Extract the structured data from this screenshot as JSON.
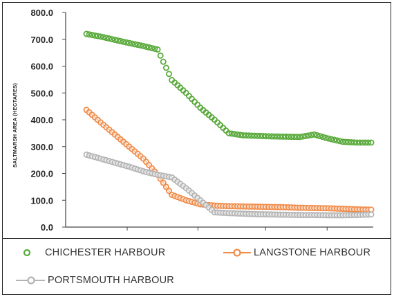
{
  "chart_data": {
    "type": "line",
    "ylabel": "SALTMARSH AREA (HECTARES)",
    "ylim": [
      0,
      800
    ],
    "yticks": [
      "800.0",
      "700.0",
      "600.0",
      "500.0",
      "400.0",
      "300.0",
      "200.0",
      "100.0",
      "0.0"
    ],
    "x": [
      0,
      2,
      4,
      6,
      8,
      10,
      12,
      14,
      16,
      18,
      20,
      22,
      24,
      26,
      28,
      30,
      32,
      34,
      36,
      38,
      40
    ],
    "series": [
      {
        "name": "CHICHESTER HARBOUR",
        "color": "#5aaa3c",
        "marker": "circle-open",
        "line": false,
        "values": [
          720,
          710,
          698,
          686,
          675,
          662,
          548,
          500,
          445,
          400,
          350,
          342,
          340,
          338,
          337,
          336,
          345,
          330,
          318,
          315,
          315
        ]
      },
      {
        "name": "LANGSTONE HARBOUR",
        "color": "#f08c4a",
        "marker": "circle-open",
        "line": true,
        "values": [
          437,
          390,
          345,
          300,
          255,
          195,
          120,
          100,
          85,
          80,
          78,
          77,
          76,
          75,
          74,
          72,
          71,
          70,
          68,
          66,
          65
        ]
      },
      {
        "name": "PORTSMOUTH HARBOUR",
        "color": "#b4b4b4",
        "marker": "circle-open",
        "line": true,
        "values": [
          270,
          255,
          240,
          225,
          208,
          195,
          185,
          145,
          100,
          55,
          52,
          50,
          48,
          47,
          46,
          45,
          45,
          44,
          44,
          45,
          47
        ]
      }
    ],
    "legend_position": "bottom",
    "grid": false
  }
}
